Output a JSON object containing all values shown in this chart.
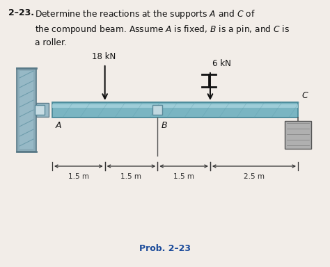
{
  "bg_color": "#f2ede8",
  "beam_color": "#7ab5c2",
  "beam_top_color": "#a8d4de",
  "beam_edge_color": "#4a8a9a",
  "wall_face_color": "#8aabb8",
  "wall_edge_color": "#5a7a88",
  "pin_color": "#9abbc8",
  "roller_color": "#999999",
  "roller_hatch_color": "#777777",
  "force_color": "#111111",
  "text_color": "#111111",
  "dim_color": "#333333",
  "force1_label": "18 kN",
  "force2_label": "6 kN",
  "dim1": "1.5 m",
  "dim2": "1.5 m",
  "dim3": "1.5 m",
  "dim4": "2.5 m",
  "label_A": "A",
  "label_B": "B",
  "label_C": "C",
  "prob_label": "Prob. 2–23",
  "title_num": "2–23.",
  "title_rest": "  Determine the reactions at the supports $A$ and $C$ of\nthe compound beam. Assume $A$ is fixed, $B$ is a pin, and $C$ is\na roller."
}
